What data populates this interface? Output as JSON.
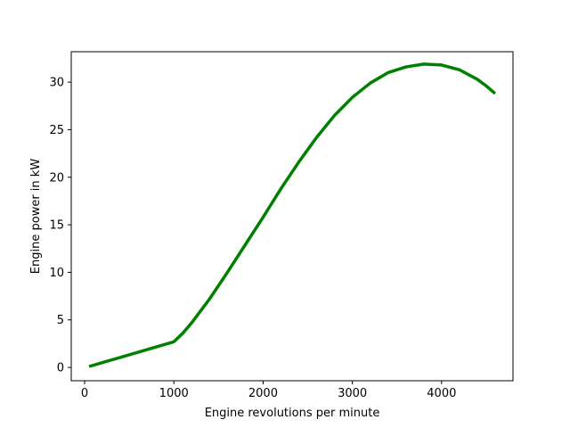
{
  "chart_data": {
    "type": "line",
    "title": "",
    "xlabel": "Engine revolutions per minute",
    "ylabel": "Engine power in kW",
    "xlim": [
      -150,
      4800
    ],
    "ylim": [
      -1.4,
      33.2
    ],
    "xticks": [
      0,
      1000,
      2000,
      3000,
      4000
    ],
    "yticks": [
      0,
      5,
      10,
      15,
      20,
      25,
      30
    ],
    "xtick_labels": [
      "0",
      "1000",
      "2000",
      "3000",
      "4000"
    ],
    "ytick_labels": [
      "0",
      "5",
      "10",
      "15",
      "20",
      "25",
      "30"
    ],
    "grid": false,
    "legend": "none",
    "series": [
      {
        "color": "#008000",
        "x": [
          50,
          1000,
          1100,
          1200,
          1400,
          1600,
          1800,
          2000,
          2200,
          2400,
          2600,
          2800,
          3000,
          3200,
          3400,
          3600,
          3800,
          4000,
          4200,
          4400,
          4500,
          4600
        ],
        "y": [
          0.1,
          2.7,
          3.6,
          4.7,
          7.2,
          10.0,
          12.9,
          15.8,
          18.8,
          21.6,
          24.2,
          26.5,
          28.4,
          29.9,
          31.0,
          31.6,
          31.9,
          31.8,
          31.3,
          30.3,
          29.6,
          28.8
        ]
      }
    ]
  }
}
